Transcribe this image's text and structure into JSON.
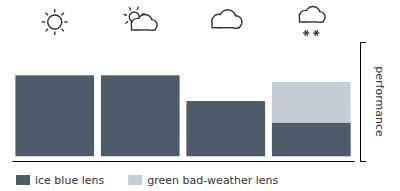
{
  "chart_data": {
    "type": "bar",
    "categories": [
      null,
      null,
      null,
      null
    ],
    "series": [
      {
        "name": "ice blue lens",
        "color": "#4d5b6b",
        "values": [
          0.85,
          0.85,
          0.58,
          0.35
        ]
      },
      {
        "name": "green bad-weather lens",
        "color": "#c5cdd6",
        "values": [
          null,
          null,
          0.48,
          0.78
        ]
      }
    ],
    "y_label": "performance",
    "ylim": [
      -0.05,
      1.2
    ],
    "tick_labels": false,
    "stacked": false,
    "grid": false,
    "legend": "bottom"
  }
}
